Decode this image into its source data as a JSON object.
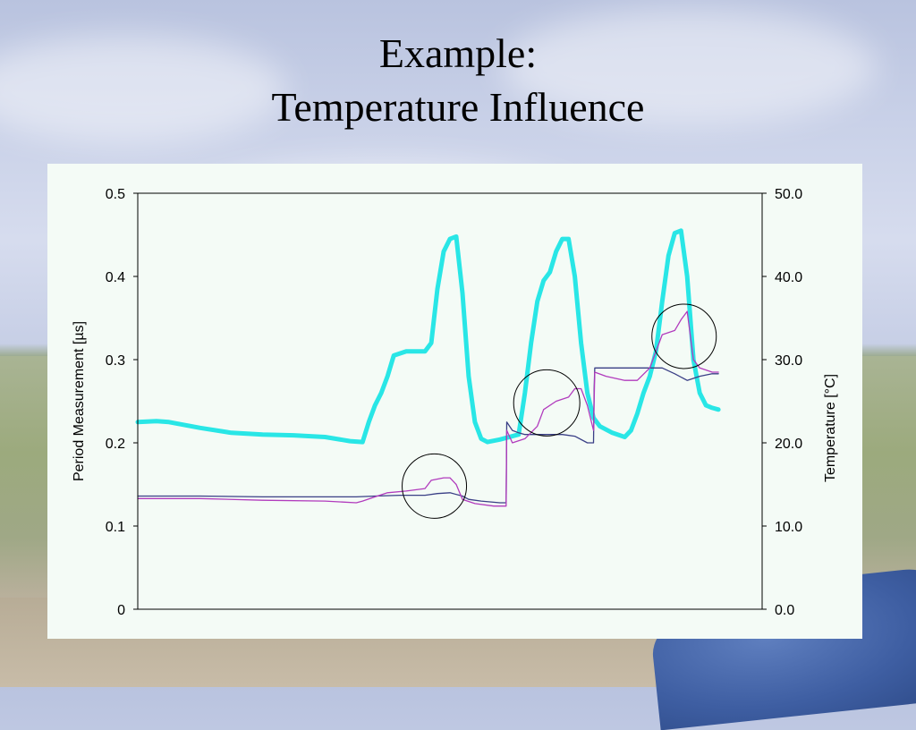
{
  "slide": {
    "title_line1": "Example:",
    "title_line2": "Temperature Influence"
  },
  "colors": {
    "temperature": "#29e6e6",
    "period_magenta": "#b13bbd",
    "period_dark": "#3a3f86",
    "annotation": "#000000"
  },
  "chart_data": {
    "type": "line",
    "title": "",
    "y_left": {
      "label": "Period Measurement [µs]",
      "ylim": [
        0,
        0.5
      ],
      "ticks": [
        0,
        0.1,
        0.2,
        0.3,
        0.4,
        0.5
      ],
      "tick_labels": [
        "0",
        "0.1",
        "0.2",
        "0.3",
        "0.4",
        "0.5"
      ]
    },
    "y_right": {
      "label": "Temperature [°C]",
      "ylim": [
        0,
        50
      ],
      "ticks": [
        0,
        10,
        20,
        30,
        40,
        50
      ],
      "tick_labels": [
        "0.0",
        "10.0",
        "20.0",
        "30.0",
        "40.0",
        "50.0"
      ]
    },
    "x": {
      "range": [
        0,
        100
      ],
      "tick_labels": []
    },
    "grid": false,
    "legend": "none",
    "series": [
      {
        "axis": "right",
        "color_key": "temperature",
        "width": 5,
        "points": [
          [
            0,
            22.5
          ],
          [
            3,
            22.6
          ],
          [
            5,
            22.5
          ],
          [
            10,
            21.8
          ],
          [
            15,
            21.2
          ],
          [
            20,
            21
          ],
          [
            25,
            20.9
          ],
          [
            30,
            20.7
          ],
          [
            34,
            20.2
          ],
          [
            36,
            20.1
          ],
          [
            37,
            22.5
          ],
          [
            38,
            24.5
          ],
          [
            39,
            26
          ],
          [
            40,
            28
          ],
          [
            41,
            30.5
          ],
          [
            43,
            31
          ],
          [
            46,
            31
          ],
          [
            47,
            32
          ],
          [
            48,
            38.5
          ],
          [
            49,
            43
          ],
          [
            50,
            44.5
          ],
          [
            51,
            44.8
          ],
          [
            52,
            38
          ],
          [
            53,
            28
          ],
          [
            54,
            22.5
          ],
          [
            55,
            20.5
          ],
          [
            56,
            20.1
          ],
          [
            58,
            20.4
          ],
          [
            60,
            20.8
          ],
          [
            61,
            21
          ],
          [
            62,
            26
          ],
          [
            63,
            32
          ],
          [
            64,
            37
          ],
          [
            65,
            39.5
          ],
          [
            66,
            40.5
          ],
          [
            67,
            43
          ],
          [
            68,
            44.5
          ],
          [
            69,
            44.5
          ],
          [
            70,
            40
          ],
          [
            71,
            32
          ],
          [
            72,
            26
          ],
          [
            73,
            23
          ],
          [
            74,
            22
          ],
          [
            76,
            21.2
          ],
          [
            78,
            20.7
          ],
          [
            79,
            21.5
          ],
          [
            80,
            23.5
          ],
          [
            81,
            26
          ],
          [
            82,
            28
          ],
          [
            83,
            31
          ],
          [
            84,
            37
          ],
          [
            85,
            42.5
          ],
          [
            86,
            45.2
          ],
          [
            87,
            45.5
          ],
          [
            88,
            40
          ],
          [
            89,
            30
          ],
          [
            90,
            26
          ],
          [
            91,
            24.5
          ],
          [
            92,
            24.2
          ],
          [
            93,
            24
          ]
        ]
      },
      {
        "axis": "left",
        "color_key": "period_dark",
        "width": 1.3,
        "points": [
          [
            0,
            0.136
          ],
          [
            10,
            0.136
          ],
          [
            20,
            0.135
          ],
          [
            30,
            0.135
          ],
          [
            35,
            0.135
          ],
          [
            38,
            0.136
          ],
          [
            42,
            0.137
          ],
          [
            46,
            0.137
          ],
          [
            48,
            0.139
          ],
          [
            50,
            0.14
          ],
          [
            52,
            0.136
          ],
          [
            53,
            0.132
          ],
          [
            55,
            0.13
          ],
          [
            58,
            0.128
          ],
          [
            59,
            0.128
          ],
          [
            59.1,
            0.225
          ],
          [
            60,
            0.215
          ],
          [
            61,
            0.212
          ],
          [
            62,
            0.21
          ],
          [
            64,
            0.21
          ],
          [
            68,
            0.21
          ],
          [
            70,
            0.208
          ],
          [
            72,
            0.2
          ],
          [
            73,
            0.2
          ],
          [
            73.1,
            0.265
          ],
          [
            73.2,
            0.29
          ],
          [
            76,
            0.29
          ],
          [
            82,
            0.29
          ],
          [
            84,
            0.29
          ],
          [
            86,
            0.283
          ],
          [
            88,
            0.275
          ],
          [
            90,
            0.28
          ],
          [
            92,
            0.283
          ],
          [
            93,
            0.283
          ]
        ]
      },
      {
        "axis": "left",
        "color_key": "period_magenta",
        "width": 1.3,
        "points": [
          [
            0,
            0.133
          ],
          [
            10,
            0.133
          ],
          [
            20,
            0.131
          ],
          [
            30,
            0.13
          ],
          [
            35,
            0.128
          ],
          [
            36,
            0.13
          ],
          [
            38,
            0.135
          ],
          [
            40,
            0.14
          ],
          [
            43,
            0.142
          ],
          [
            46,
            0.145
          ],
          [
            47,
            0.155
          ],
          [
            49,
            0.158
          ],
          [
            50,
            0.158
          ],
          [
            51,
            0.15
          ],
          [
            52,
            0.132
          ],
          [
            54,
            0.127
          ],
          [
            57,
            0.124
          ],
          [
            59,
            0.124
          ],
          [
            59.1,
            0.215
          ],
          [
            60,
            0.2
          ],
          [
            62,
            0.205
          ],
          [
            64,
            0.22
          ],
          [
            65,
            0.24
          ],
          [
            67,
            0.25
          ],
          [
            69,
            0.255
          ],
          [
            70,
            0.265
          ],
          [
            71,
            0.265
          ],
          [
            72,
            0.245
          ],
          [
            73,
            0.215
          ],
          [
            73.2,
            0.285
          ],
          [
            75,
            0.28
          ],
          [
            78,
            0.275
          ],
          [
            80,
            0.275
          ],
          [
            82,
            0.29
          ],
          [
            84,
            0.33
          ],
          [
            86,
            0.335
          ],
          [
            87,
            0.348
          ],
          [
            88,
            0.358
          ],
          [
            89,
            0.3
          ],
          [
            90,
            0.29
          ],
          [
            92,
            0.285
          ],
          [
            93,
            0.285
          ]
        ]
      }
    ],
    "annotations": [
      {
        "type": "circle",
        "cx": 47.5,
        "cy": 0.148,
        "r_px": 36
      },
      {
        "type": "circle",
        "cx": 65.5,
        "cy": 0.248,
        "r_px": 37
      },
      {
        "type": "circle",
        "cx": 87.5,
        "cy": 0.328,
        "r_px": 36
      }
    ]
  }
}
